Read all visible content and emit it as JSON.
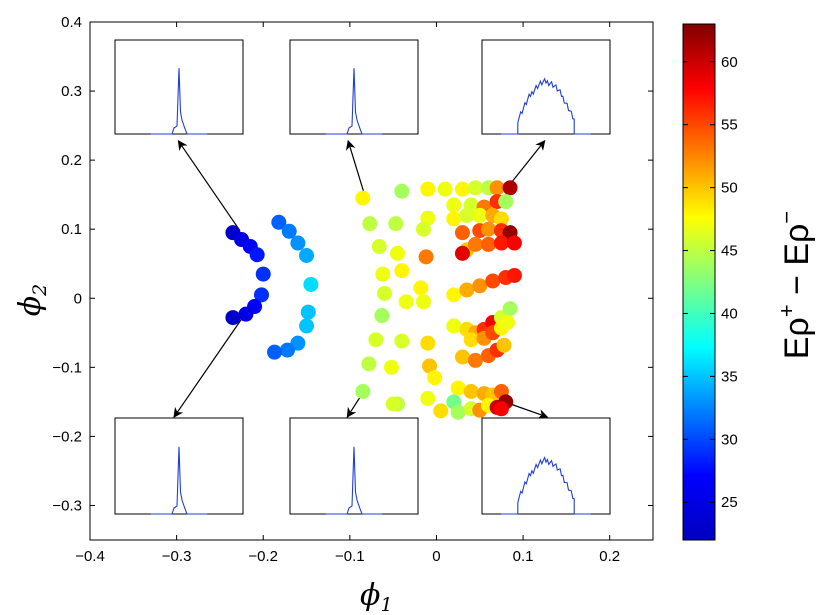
{
  "chart_data": {
    "type": "scatter",
    "xlim": [
      -0.4,
      0.25
    ],
    "ylim": [
      -0.35,
      0.4
    ],
    "xticks": [
      -0.4,
      -0.3,
      -0.2,
      -0.1,
      0,
      0.1,
      0.2
    ],
    "xtick_labels": [
      "−0.4",
      "−0.3",
      "−0.2",
      "−0.1",
      "0",
      "0.1",
      "0.2"
    ],
    "yticks": [
      0.4,
      0.3,
      0.2,
      0.1,
      0,
      -0.1,
      -0.2,
      -0.3
    ],
    "ytick_labels": [
      "0.4",
      "0.3",
      "0.2",
      "0.1",
      "0",
      "−0.1",
      "−0.2",
      "−0.3"
    ],
    "xlabel": {
      "symbol": "ϕ",
      "sub": "1"
    },
    "ylabel": {
      "symbol": "ϕ",
      "sub": "2"
    },
    "colorbar": {
      "range": [
        22,
        63
      ],
      "ticks": [
        25,
        30,
        35,
        40,
        45,
        50,
        55,
        60
      ],
      "label_parts": {
        "a": "Eρ",
        "a_sup": "+",
        "mid": " − Eρ",
        "b_sup": "−"
      }
    },
    "points": [
      {
        "x": -0.235,
        "y": 0.095,
        "c": 25
      },
      {
        "x": -0.225,
        "y": 0.085,
        "c": 26
      },
      {
        "x": -0.215,
        "y": 0.075,
        "c": 27
      },
      {
        "x": -0.207,
        "y": 0.063,
        "c": 28
      },
      {
        "x": -0.2,
        "y": 0.035,
        "c": 29
      },
      {
        "x": -0.202,
        "y": 0.005,
        "c": 29
      },
      {
        "x": -0.21,
        "y": -0.012,
        "c": 27
      },
      {
        "x": -0.22,
        "y": -0.023,
        "c": 26
      },
      {
        "x": -0.235,
        "y": -0.028,
        "c": 25
      },
      {
        "x": -0.182,
        "y": 0.11,
        "c": 31
      },
      {
        "x": -0.17,
        "y": 0.097,
        "c": 32
      },
      {
        "x": -0.16,
        "y": 0.08,
        "c": 33
      },
      {
        "x": -0.15,
        "y": 0.062,
        "c": 34
      },
      {
        "x": -0.145,
        "y": 0.02,
        "c": 36
      },
      {
        "x": -0.148,
        "y": -0.02,
        "c": 35
      },
      {
        "x": -0.15,
        "y": -0.04,
        "c": 35
      },
      {
        "x": -0.16,
        "y": -0.065,
        "c": 33
      },
      {
        "x": -0.172,
        "y": -0.075,
        "c": 32
      },
      {
        "x": -0.187,
        "y": -0.078,
        "c": 31
      },
      {
        "x": -0.085,
        "y": 0.145,
        "c": 48
      },
      {
        "x": -0.077,
        "y": 0.108,
        "c": 45
      },
      {
        "x": -0.066,
        "y": 0.075,
        "c": 46
      },
      {
        "x": -0.062,
        "y": 0.035,
        "c": 47
      },
      {
        "x": -0.06,
        "y": 0.007,
        "c": 46
      },
      {
        "x": -0.063,
        "y": -0.025,
        "c": 44
      },
      {
        "x": -0.07,
        "y": -0.06,
        "c": 46
      },
      {
        "x": -0.078,
        "y": -0.095,
        "c": 45
      },
      {
        "x": -0.085,
        "y": -0.135,
        "c": 44
      },
      {
        "x": -0.04,
        "y": 0.155,
        "c": 44
      },
      {
        "x": -0.047,
        "y": 0.108,
        "c": 45
      },
      {
        "x": -0.045,
        "y": 0.065,
        "c": 47
      },
      {
        "x": -0.04,
        "y": 0.04,
        "c": 48
      },
      {
        "x": -0.035,
        "y": -0.005,
        "c": 47
      },
      {
        "x": -0.04,
        "y": -0.062,
        "c": 46
      },
      {
        "x": -0.052,
        "y": -0.1,
        "c": 47
      },
      {
        "x": -0.045,
        "y": -0.153,
        "c": 45
      },
      {
        "x": -0.05,
        "y": -0.153,
        "c": 46
      },
      {
        "x": -0.01,
        "y": 0.158,
        "c": 48
      },
      {
        "x": -0.01,
        "y": 0.116,
        "c": 47
      },
      {
        "x": -0.015,
        "y": 0.1,
        "c": 46
      },
      {
        "x": -0.012,
        "y": 0.06,
        "c": 53
      },
      {
        "x": -0.018,
        "y": 0.015,
        "c": 48
      },
      {
        "x": -0.015,
        "y": -0.005,
        "c": 47
      },
      {
        "x": -0.01,
        "y": -0.065,
        "c": 49
      },
      {
        "x": -0.008,
        "y": -0.098,
        "c": 50
      },
      {
        "x": -0.002,
        "y": -0.115,
        "c": 48
      },
      {
        "x": -0.01,
        "y": -0.145,
        "c": 47
      },
      {
        "x": 0.005,
        "y": -0.163,
        "c": 49
      },
      {
        "x": 0.01,
        "y": 0.158,
        "c": 47
      },
      {
        "x": 0.03,
        "y": 0.158,
        "c": 48
      },
      {
        "x": 0.045,
        "y": 0.16,
        "c": 46
      },
      {
        "x": 0.06,
        "y": 0.16,
        "c": 45
      },
      {
        "x": 0.07,
        "y": 0.16,
        "c": 52
      },
      {
        "x": 0.085,
        "y": 0.16,
        "c": 61
      },
      {
        "x": 0.02,
        "y": 0.135,
        "c": 47
      },
      {
        "x": 0.04,
        "y": 0.135,
        "c": 46
      },
      {
        "x": 0.055,
        "y": 0.132,
        "c": 53
      },
      {
        "x": 0.07,
        "y": 0.14,
        "c": 56
      },
      {
        "x": 0.08,
        "y": 0.14,
        "c": 44
      },
      {
        "x": 0.02,
        "y": 0.115,
        "c": 48
      },
      {
        "x": 0.035,
        "y": 0.12,
        "c": 46
      },
      {
        "x": 0.05,
        "y": 0.12,
        "c": 47
      },
      {
        "x": 0.065,
        "y": 0.12,
        "c": 51
      },
      {
        "x": 0.075,
        "y": 0.115,
        "c": 49
      },
      {
        "x": 0.03,
        "y": 0.095,
        "c": 54
      },
      {
        "x": 0.05,
        "y": 0.098,
        "c": 55
      },
      {
        "x": 0.06,
        "y": 0.1,
        "c": 52
      },
      {
        "x": 0.075,
        "y": 0.098,
        "c": 56
      },
      {
        "x": 0.085,
        "y": 0.095,
        "c": 62
      },
      {
        "x": 0.035,
        "y": 0.07,
        "c": 50
      },
      {
        "x": 0.045,
        "y": 0.078,
        "c": 53
      },
      {
        "x": 0.06,
        "y": 0.078,
        "c": 54
      },
      {
        "x": 0.075,
        "y": 0.08,
        "c": 57
      },
      {
        "x": 0.09,
        "y": 0.08,
        "c": 58
      },
      {
        "x": 0.03,
        "y": 0.065,
        "c": 59
      },
      {
        "x": 0.02,
        "y": 0.005,
        "c": 48
      },
      {
        "x": 0.035,
        "y": 0.012,
        "c": 51
      },
      {
        "x": 0.05,
        "y": 0.018,
        "c": 52
      },
      {
        "x": 0.065,
        "y": 0.025,
        "c": 55
      },
      {
        "x": 0.08,
        "y": 0.03,
        "c": 56
      },
      {
        "x": 0.09,
        "y": 0.033,
        "c": 57
      },
      {
        "x": 0.02,
        "y": -0.04,
        "c": 47
      },
      {
        "x": 0.035,
        "y": -0.045,
        "c": 49
      },
      {
        "x": 0.045,
        "y": -0.05,
        "c": 51
      },
      {
        "x": 0.055,
        "y": -0.045,
        "c": 56
      },
      {
        "x": 0.065,
        "y": -0.035,
        "c": 58
      },
      {
        "x": 0.075,
        "y": -0.028,
        "c": 46
      },
      {
        "x": 0.085,
        "y": -0.015,
        "c": 44
      },
      {
        "x": 0.04,
        "y": -0.06,
        "c": 49
      },
      {
        "x": 0.055,
        "y": -0.058,
        "c": 52
      },
      {
        "x": 0.065,
        "y": -0.05,
        "c": 55
      },
      {
        "x": 0.075,
        "y": -0.043,
        "c": 48
      },
      {
        "x": 0.082,
        "y": -0.035,
        "c": 47
      },
      {
        "x": 0.03,
        "y": -0.085,
        "c": 50
      },
      {
        "x": 0.045,
        "y": -0.09,
        "c": 53
      },
      {
        "x": 0.06,
        "y": -0.083,
        "c": 54
      },
      {
        "x": 0.07,
        "y": -0.075,
        "c": 56
      },
      {
        "x": 0.078,
        "y": -0.068,
        "c": 50
      },
      {
        "x": 0.025,
        "y": -0.13,
        "c": 48
      },
      {
        "x": 0.04,
        "y": -0.135,
        "c": 50
      },
      {
        "x": 0.055,
        "y": -0.138,
        "c": 51
      },
      {
        "x": 0.065,
        "y": -0.14,
        "c": 50
      },
      {
        "x": 0.075,
        "y": -0.135,
        "c": 54
      },
      {
        "x": 0.02,
        "y": -0.15,
        "c": 42
      },
      {
        "x": 0.025,
        "y": -0.165,
        "c": 44
      },
      {
        "x": 0.04,
        "y": -0.16,
        "c": 46
      },
      {
        "x": 0.05,
        "y": -0.162,
        "c": 52
      },
      {
        "x": 0.06,
        "y": -0.155,
        "c": 48
      },
      {
        "x": 0.07,
        "y": -0.158,
        "c": 60
      },
      {
        "x": 0.08,
        "y": -0.15,
        "c": 62
      },
      {
        "x": 0.075,
        "y": -0.16,
        "c": 58
      }
    ],
    "insets": [
      {
        "shape": "spike",
        "peak": 0.5,
        "arrow_from": [
          -0.227,
          0.098
        ],
        "arrow_to": [
          -0.298,
          0.228
        ]
      },
      {
        "shape": "spike",
        "peak": 0.48,
        "arrow_from": [
          -0.083,
          0.15
        ],
        "arrow_to": [
          -0.102,
          0.228
        ]
      },
      {
        "shape": "broad",
        "peak": 0.55,
        "arrow_from": [
          0.083,
          0.162
        ],
        "arrow_to": [
          0.125,
          0.228
        ]
      },
      {
        "shape": "spike",
        "peak": 0.5,
        "arrow_from": [
          -0.225,
          -0.03
        ],
        "arrow_to": [
          -0.303,
          -0.172
        ]
      },
      {
        "shape": "spike",
        "peak": 0.55,
        "arrow_from": [
          -0.083,
          -0.133
        ],
        "arrow_to": [
          -0.103,
          -0.172
        ]
      },
      {
        "shape": "broad",
        "peak": 0.55,
        "arrow_from": [
          0.083,
          -0.152
        ],
        "arrow_to": [
          0.128,
          -0.172
        ]
      }
    ]
  }
}
